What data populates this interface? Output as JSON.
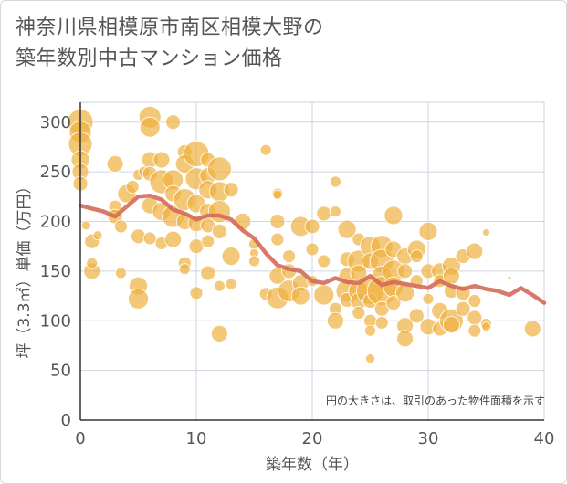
{
  "title": "神奈川県相模原市南区相模大野の\n築年数別中古マンション価格",
  "chart_data": {
    "type": "scatter",
    "xlabel": "築年数（年）",
    "ylabel": "坪（3.3㎡）単価（万円）",
    "xlim": [
      0,
      40
    ],
    "ylim": [
      0,
      320
    ],
    "x_ticks": [
      0,
      10,
      20,
      30,
      40
    ],
    "y_ticks": [
      0,
      50,
      100,
      150,
      200,
      250,
      300
    ],
    "note": "円の大きさは、取引のあった物件面積を示す",
    "grid": true,
    "colors": {
      "bubble": "#f0b040",
      "line": "#d46a5a",
      "grid": "#cdd5e0",
      "axis": "#333333"
    },
    "trend_line": {
      "x": [
        0,
        1,
        2,
        3,
        4,
        5,
        6,
        7,
        8,
        9,
        10,
        11,
        12,
        13,
        14,
        15,
        16,
        17,
        18,
        19,
        20,
        21,
        22,
        23,
        24,
        25,
        26,
        27,
        28,
        29,
        30,
        31,
        32,
        33,
        34,
        35,
        36,
        37,
        38,
        39,
        40
      ],
      "y": [
        216,
        213,
        210,
        205,
        215,
        225,
        226,
        222,
        212,
        208,
        202,
        206,
        206,
        202,
        191,
        183,
        168,
        156,
        152,
        150,
        140,
        138,
        143,
        139,
        138,
        145,
        136,
        139,
        137,
        135,
        133,
        140,
        135,
        132,
        135,
        132,
        130,
        126,
        133,
        126,
        118
      ]
    },
    "points": [
      [
        0,
        300,
        14
      ],
      [
        0,
        290,
        12
      ],
      [
        0,
        278,
        13
      ],
      [
        0,
        262,
        10
      ],
      [
        0,
        250,
        9
      ],
      [
        0,
        238,
        8
      ],
      [
        0.5,
        196,
        5
      ],
      [
        1,
        180,
        8
      ],
      [
        1,
        150,
        9
      ],
      [
        1,
        158,
        6
      ],
      [
        1.5,
        186,
        5
      ],
      [
        3,
        258,
        9
      ],
      [
        3,
        215,
        7
      ],
      [
        3,
        205,
        8
      ],
      [
        3.5,
        195,
        7
      ],
      [
        3.5,
        148,
        6
      ],
      [
        4,
        228,
        10
      ],
      [
        4.5,
        235,
        7
      ],
      [
        5,
        247,
        6
      ],
      [
        5,
        185,
        8
      ],
      [
        5,
        135,
        10
      ],
      [
        5,
        122,
        11
      ],
      [
        5.5,
        250,
        6
      ],
      [
        6,
        305,
        12
      ],
      [
        6,
        295,
        11
      ],
      [
        6,
        262,
        9
      ],
      [
        6,
        248,
        8
      ],
      [
        6,
        216,
        9
      ],
      [
        6,
        183,
        7
      ],
      [
        7,
        262,
        9
      ],
      [
        7,
        240,
        13
      ],
      [
        7,
        210,
        10
      ],
      [
        7,
        178,
        7
      ],
      [
        8,
        300,
        8
      ],
      [
        8,
        242,
        11
      ],
      [
        8,
        228,
        9
      ],
      [
        8,
        205,
        12
      ],
      [
        8,
        182,
        9
      ],
      [
        9,
        270,
        8
      ],
      [
        9,
        258,
        10
      ],
      [
        9,
        222,
        12
      ],
      [
        9,
        200,
        9
      ],
      [
        9,
        158,
        7
      ],
      [
        9,
        152,
        6
      ],
      [
        10,
        268,
        14
      ],
      [
        10,
        243,
        12
      ],
      [
        10,
        218,
        10
      ],
      [
        10,
        198,
        9
      ],
      [
        10,
        175,
        8
      ],
      [
        10,
        128,
        7
      ],
      [
        11,
        262,
        8
      ],
      [
        11,
        246,
        9
      ],
      [
        11,
        232,
        10
      ],
      [
        11,
        210,
        9
      ],
      [
        11,
        196,
        8
      ],
      [
        11,
        180,
        7
      ],
      [
        11,
        148,
        8
      ],
      [
        12,
        253,
        13
      ],
      [
        12,
        230,
        11
      ],
      [
        12,
        210,
        12
      ],
      [
        12,
        190,
        8
      ],
      [
        12,
        135,
        6
      ],
      [
        12,
        87,
        9
      ],
      [
        13,
        232,
        8
      ],
      [
        13,
        165,
        10
      ],
      [
        13,
        137,
        6
      ],
      [
        14,
        200,
        9
      ],
      [
        15,
        177,
        6
      ],
      [
        15,
        168,
        5
      ],
      [
        15,
        160,
        6
      ],
      [
        16,
        272,
        6
      ],
      [
        16,
        127,
        7
      ],
      [
        17,
        228,
        6
      ],
      [
        17,
        227,
        5
      ],
      [
        17,
        200,
        8
      ],
      [
        17,
        182,
        7
      ],
      [
        17,
        145,
        9
      ],
      [
        17,
        123,
        12
      ],
      [
        18,
        165,
        7
      ],
      [
        18,
        150,
        8
      ],
      [
        18,
        130,
        12
      ],
      [
        19,
        195,
        11
      ],
      [
        19,
        138,
        9
      ],
      [
        19,
        125,
        10
      ],
      [
        20,
        195,
        8
      ],
      [
        20,
        172,
        7
      ],
      [
        20,
        140,
        6
      ],
      [
        21,
        208,
        8
      ],
      [
        21,
        160,
        7
      ],
      [
        21,
        126,
        11
      ],
      [
        22,
        240,
        6
      ],
      [
        22,
        210,
        6
      ],
      [
        22,
        112,
        7
      ],
      [
        22,
        100,
        9
      ],
      [
        23,
        192,
        10
      ],
      [
        23,
        162,
        8
      ],
      [
        23,
        145,
        9
      ],
      [
        23,
        130,
        12
      ],
      [
        23,
        121,
        8
      ],
      [
        24,
        182,
        7
      ],
      [
        24,
        160,
        12
      ],
      [
        24,
        148,
        9
      ],
      [
        24,
        130,
        11
      ],
      [
        24,
        120,
        9
      ],
      [
        24,
        108,
        7
      ],
      [
        25,
        175,
        11
      ],
      [
        25,
        160,
        9
      ],
      [
        25,
        130,
        15
      ],
      [
        25,
        120,
        8
      ],
      [
        25,
        100,
        7
      ],
      [
        25,
        90,
        6
      ],
      [
        25,
        62,
        5
      ],
      [
        26,
        175,
        12
      ],
      [
        26,
        160,
        13
      ],
      [
        26,
        145,
        11
      ],
      [
        26,
        130,
        16
      ],
      [
        26,
        112,
        8
      ],
      [
        26,
        98,
        7
      ],
      [
        27,
        206,
        10
      ],
      [
        27,
        172,
        9
      ],
      [
        27,
        150,
        12
      ],
      [
        27,
        134,
        11
      ],
      [
        27,
        118,
        8
      ],
      [
        28,
        165,
        9
      ],
      [
        28,
        150,
        8
      ],
      [
        28,
        128,
        10
      ],
      [
        28,
        95,
        9
      ],
      [
        28,
        82,
        9
      ],
      [
        29,
        172,
        10
      ],
      [
        29,
        165,
        7
      ],
      [
        29,
        140,
        7
      ],
      [
        29,
        105,
        8
      ],
      [
        30,
        190,
        10
      ],
      [
        30,
        150,
        8
      ],
      [
        30,
        122,
        6
      ],
      [
        30,
        94,
        9
      ],
      [
        31,
        150,
        9
      ],
      [
        31,
        140,
        7
      ],
      [
        31,
        110,
        9
      ],
      [
        31,
        92,
        8
      ],
      [
        32,
        155,
        10
      ],
      [
        32,
        145,
        9
      ],
      [
        32,
        130,
        8
      ],
      [
        32,
        100,
        13
      ],
      [
        32,
        96,
        9
      ],
      [
        33,
        165,
        8
      ],
      [
        33,
        128,
        8
      ],
      [
        33,
        112,
        8
      ],
      [
        34,
        170,
        9
      ],
      [
        34,
        120,
        7
      ],
      [
        34,
        103,
        8
      ],
      [
        34,
        90,
        7
      ],
      [
        35,
        189,
        4
      ],
      [
        35,
        97,
        6
      ],
      [
        35,
        94,
        5
      ],
      [
        37,
        143,
        2
      ],
      [
        39,
        92,
        9
      ]
    ]
  }
}
